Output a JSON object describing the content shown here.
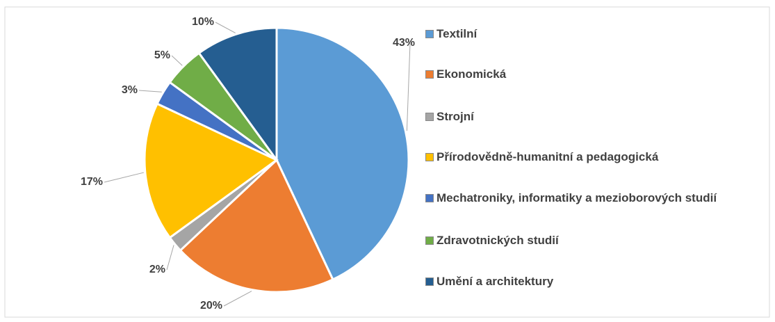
{
  "chart_data": {
    "type": "pie",
    "categories": [
      "Textilní",
      "Ekonomická",
      "Strojní",
      "Přírodovědně-humanitní a pedagogická",
      "Mechatroniky, informatiky a mezioborových studií",
      "Zdravotnických studií",
      "Umění a architektury"
    ],
    "values": [
      43,
      20,
      2,
      17,
      3,
      5,
      10
    ],
    "value_labels": [
      "43%",
      "20%",
      "2%",
      "17%",
      "3%",
      "5%",
      "10%"
    ],
    "colors": [
      "#5b9bd5",
      "#ed7d31",
      "#a5a5a5",
      "#ffc000",
      "#4472c4",
      "#70ad47",
      "#255e91"
    ],
    "legend": "right"
  }
}
